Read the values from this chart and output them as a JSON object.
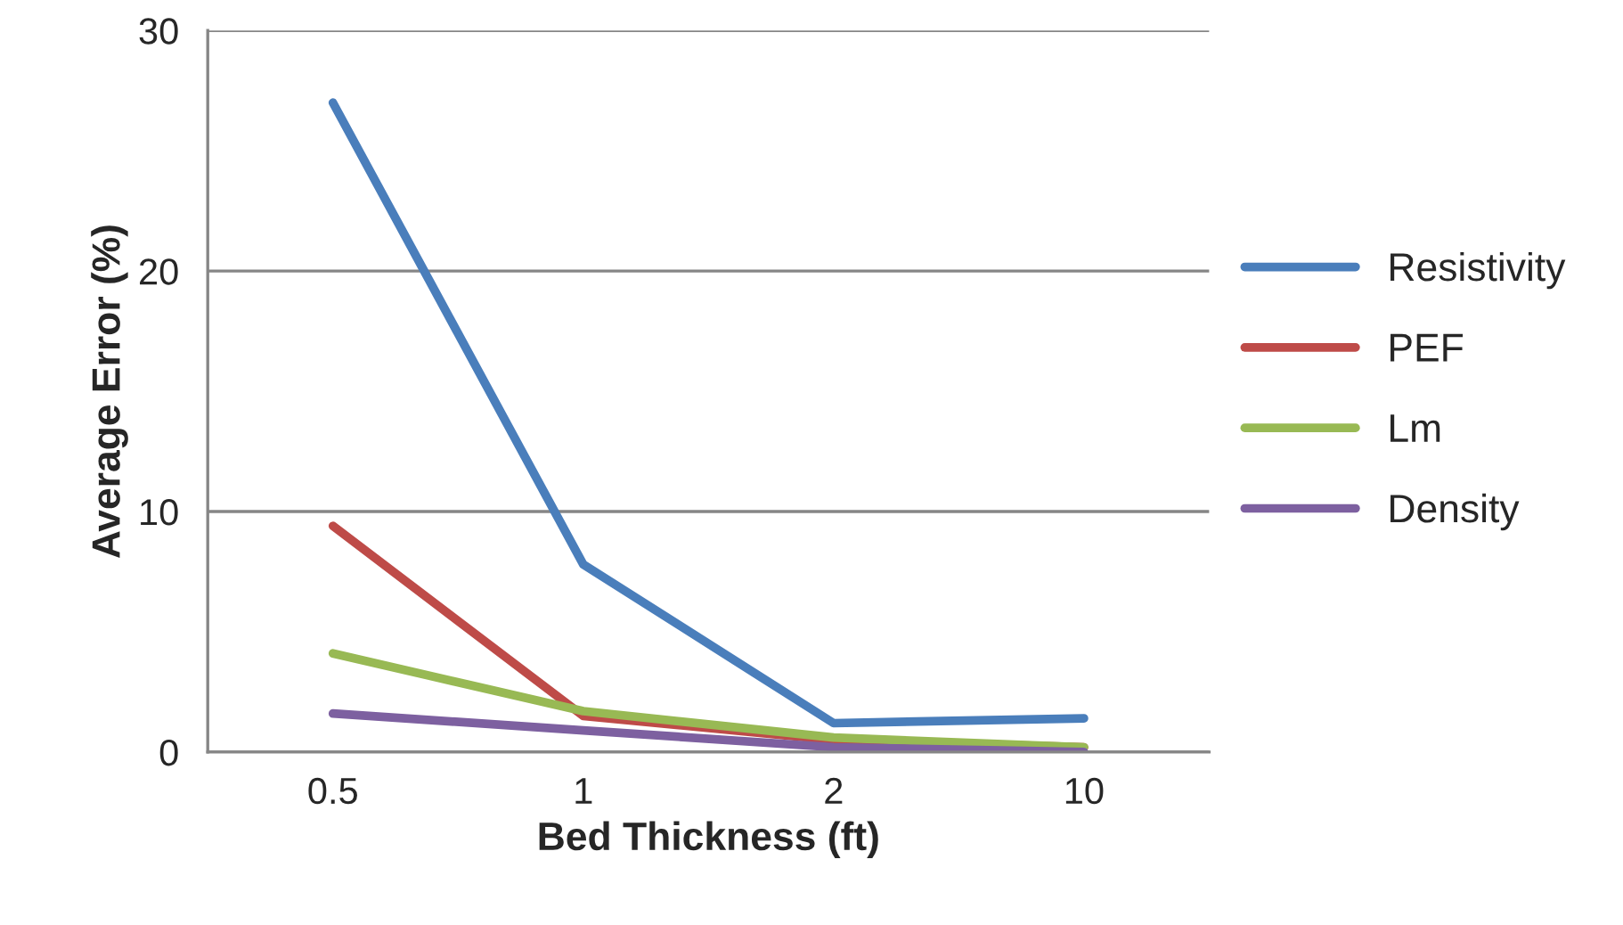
{
  "chart_data": {
    "type": "line",
    "xlabel": "Bed Thickness (ft)",
    "ylabel": "Average Error (%)",
    "categories": [
      "0.5",
      "1",
      "2",
      "10"
    ],
    "series": [
      {
        "name": "Resistivity",
        "color": "#4a7ebb",
        "values": [
          27.0,
          7.8,
          1.2,
          1.4
        ]
      },
      {
        "name": "PEF",
        "color": "#be4b48",
        "values": [
          9.4,
          1.5,
          0.5,
          0.2
        ]
      },
      {
        "name": "Lm",
        "color": "#98b954",
        "values": [
          4.1,
          1.7,
          0.6,
          0.2
        ]
      },
      {
        "name": "Density",
        "color": "#7d60a0",
        "values": [
          1.6,
          0.9,
          0.2,
          0.0
        ]
      }
    ],
    "ylim": [
      0,
      30
    ],
    "yticks": [
      0,
      10,
      20,
      30
    ],
    "grid": "y",
    "legend": "right",
    "marker": "none",
    "line_style": "solid"
  }
}
